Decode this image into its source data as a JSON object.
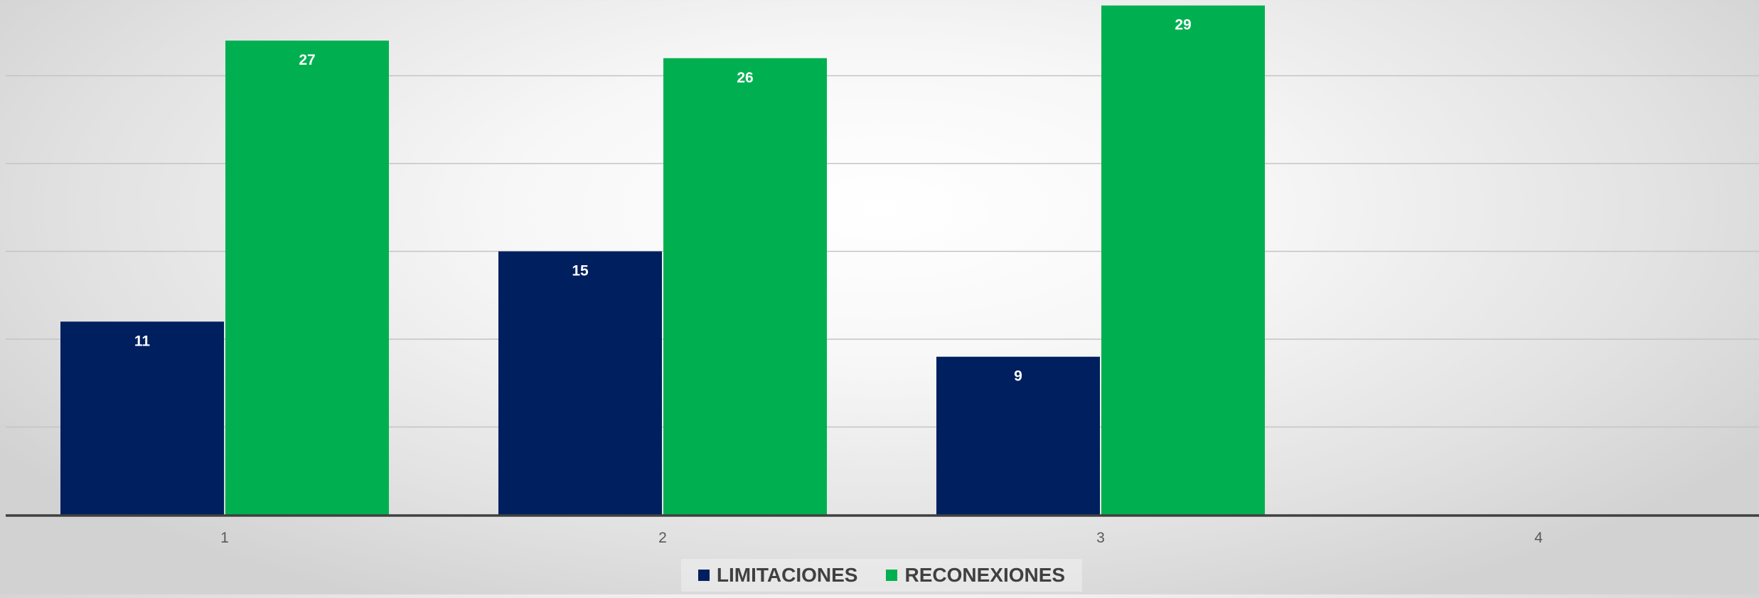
{
  "chart_data": {
    "type": "bar",
    "title": "",
    "xlabel": "",
    "ylabel": "",
    "categories": [
      "1",
      "2",
      "3",
      "4"
    ],
    "ylim": [
      0,
      29
    ],
    "grid": true,
    "legend_position": "bottom",
    "series": [
      {
        "name": "LIMITACIONES",
        "color": "#001f5f",
        "values": [
          11,
          15,
          9,
          null
        ]
      },
      {
        "name": "RECONEXIONES",
        "color": "#00b050",
        "values": [
          27,
          26,
          29,
          null
        ]
      }
    ],
    "data_labels": true
  }
}
